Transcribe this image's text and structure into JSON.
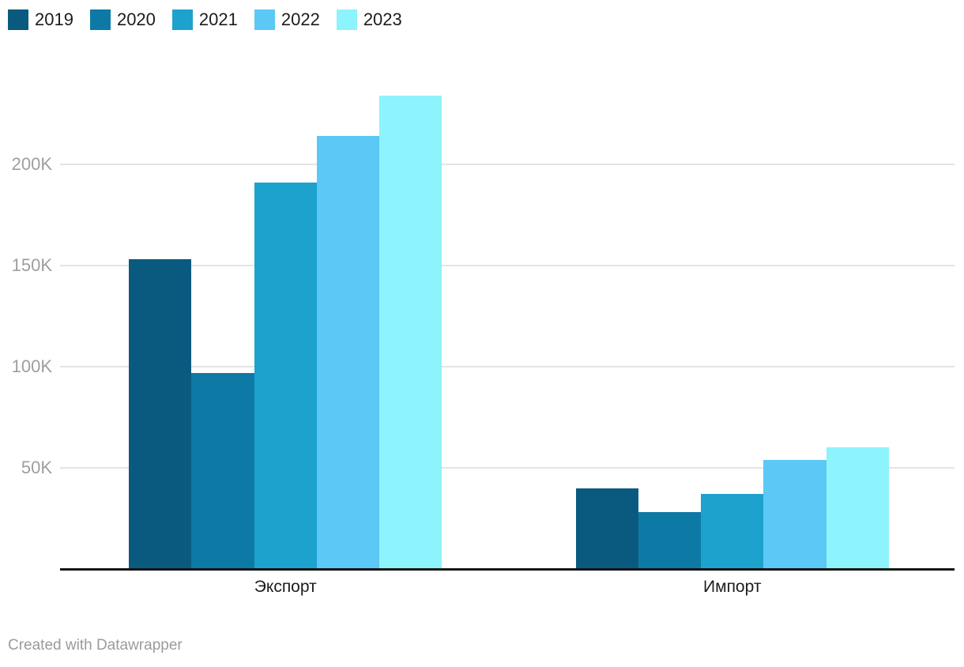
{
  "chart_data": {
    "type": "bar",
    "title": "",
    "categories": [
      "Экспорт",
      "Импорт"
    ],
    "series": [
      {
        "name": "2019",
        "color": "#0a5a7f",
        "values": [
          153,
          40
        ]
      },
      {
        "name": "2020",
        "color": "#0d7aa5",
        "values": [
          97,
          28
        ]
      },
      {
        "name": "2021",
        "color": "#1da2ce",
        "values": [
          191,
          37
        ]
      },
      {
        "name": "2022",
        "color": "#5bc8f5",
        "values": [
          214,
          54
        ]
      },
      {
        "name": "2023",
        "color": "#8df3fc",
        "values": [
          234,
          60
        ]
      }
    ],
    "unit": "K",
    "y_ticks": [
      {
        "value": 50,
        "label": "50K"
      },
      {
        "value": 100,
        "label": "100K"
      },
      {
        "value": 150,
        "label": "150K"
      },
      {
        "value": 200,
        "label": "200K"
      }
    ],
    "ylim": [
      0,
      250
    ],
    "grid": true,
    "legend_position": "top-left",
    "colors": {
      "gridline": "#e4e4e4",
      "axis_line": "#161616",
      "tick_label": "#9e9e9e",
      "category_label": "#1c1c1c",
      "legend_label": "#1c1c1c",
      "footer": "#9b9b9b"
    }
  },
  "footer": {
    "credit": "Created with Datawrapper"
  }
}
